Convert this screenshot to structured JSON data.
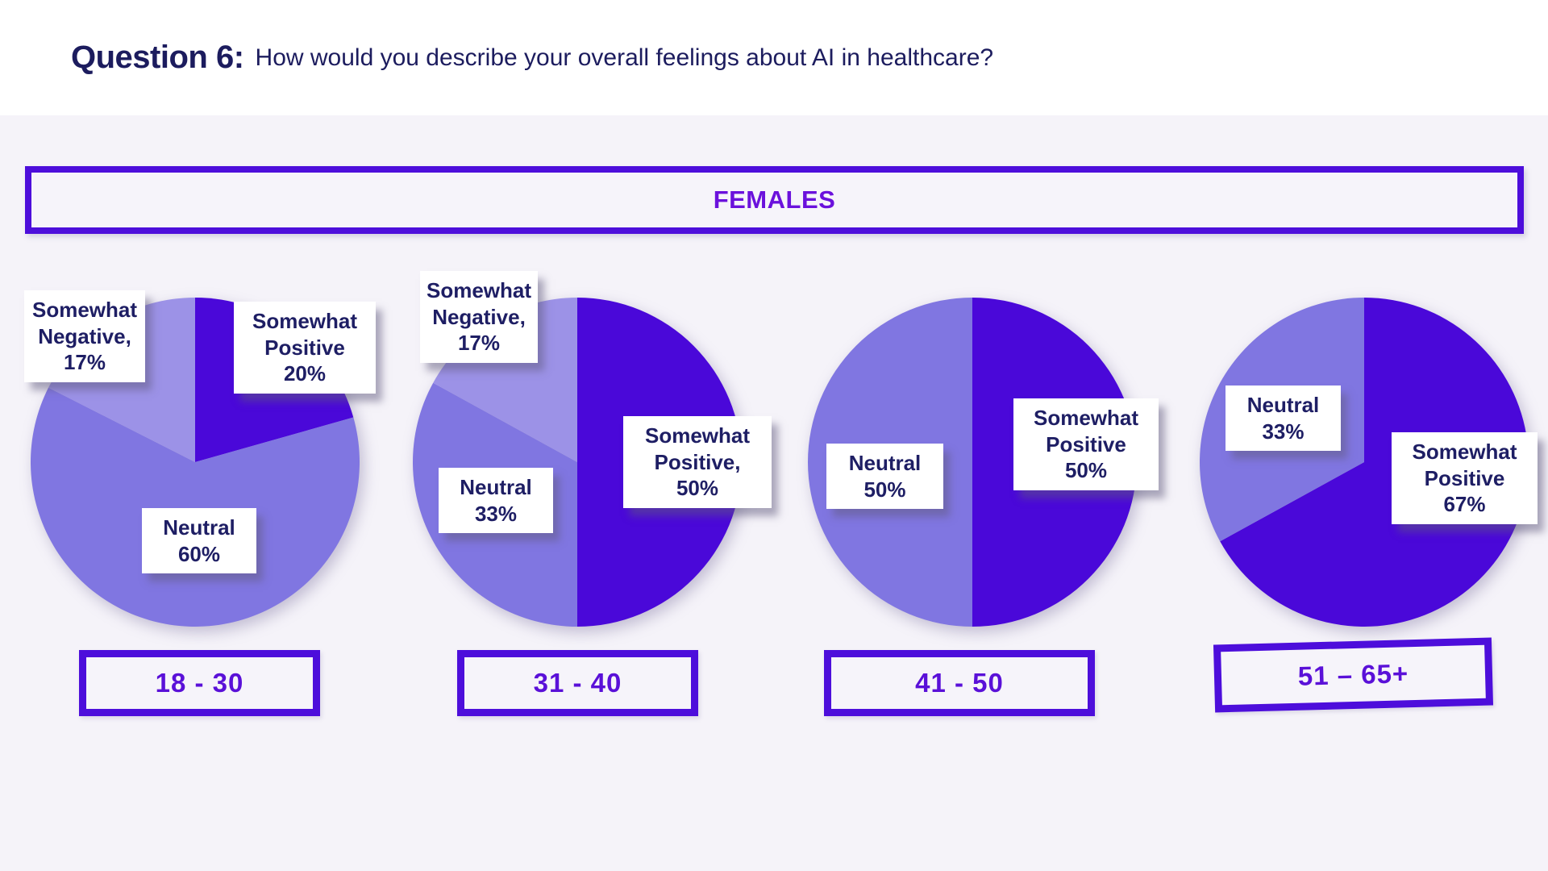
{
  "header": {
    "question_label": "Question 6:",
    "question_text": "How would you describe your overall feelings about AI in healthcare?"
  },
  "banner": {
    "label": "FEMALES"
  },
  "colors": {
    "somewhat_positive": "#4a08d9",
    "neutral": "#8076e1",
    "somewhat_negative": "#9c92e7",
    "background": "#f5f3f9",
    "navy_text": "#1e1e64",
    "purple_border": "#4d0edb",
    "purple_text": "#5a10d8"
  },
  "chart_data": [
    {
      "type": "pie",
      "title": "18 - 30",
      "group": "FEMALES",
      "slices": [
        {
          "label": "Somewhat Positive",
          "value": 20,
          "display": "Somewhat\nPositive\n20%",
          "role": "somewhat_positive"
        },
        {
          "label": "Neutral",
          "value": 60,
          "display": "Neutral\n60%",
          "role": "neutral"
        },
        {
          "label": "Somewhat Negative",
          "value": 17,
          "display": "Somewhat\nNegative,\n17%",
          "role": "somewhat_negative"
        }
      ]
    },
    {
      "type": "pie",
      "title": "31 - 40",
      "group": "FEMALES",
      "slices": [
        {
          "label": "Somewhat Positive",
          "value": 50,
          "display": "Somewhat\nPositive,\n50%",
          "role": "somewhat_positive"
        },
        {
          "label": "Neutral",
          "value": 33,
          "display": "Neutral\n33%",
          "role": "neutral"
        },
        {
          "label": "Somewhat Negative",
          "value": 17,
          "display": "Somewhat\nNegative,\n17%",
          "role": "somewhat_negative"
        }
      ]
    },
    {
      "type": "pie",
      "title": "41 - 50",
      "group": "FEMALES",
      "slices": [
        {
          "label": "Somewhat Positive",
          "value": 50,
          "display": "Somewhat\nPositive\n50%",
          "role": "somewhat_positive"
        },
        {
          "label": "Neutral",
          "value": 50,
          "display": "Neutral\n50%",
          "role": "neutral"
        }
      ]
    },
    {
      "type": "pie",
      "title": "51 – 65+",
      "group": "FEMALES",
      "slices": [
        {
          "label": "Somewhat Positive",
          "value": 67,
          "display": "Somewhat\nPositive\n67%",
          "role": "somewhat_positive"
        },
        {
          "label": "Neutral",
          "value": 33,
          "display": "Neutral\n33%",
          "role": "neutral"
        }
      ]
    }
  ]
}
